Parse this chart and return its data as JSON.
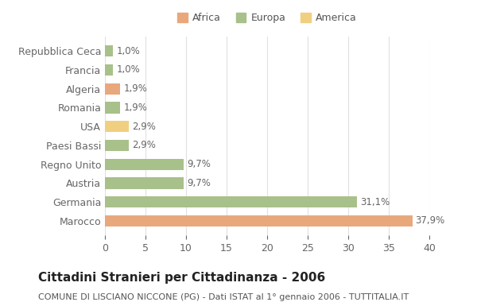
{
  "categories_top_to_bottom": [
    "Marocco",
    "Germania",
    "Austria",
    "Regno Unito",
    "Paesi Bassi",
    "USA",
    "Romania",
    "Algeria",
    "Francia",
    "Repubblica Ceca"
  ],
  "values_top_to_bottom": [
    37.9,
    31.1,
    9.7,
    9.7,
    2.9,
    2.9,
    1.9,
    1.9,
    1.0,
    1.0
  ],
  "labels_top_to_bottom": [
    "37,9%",
    "31,1%",
    "9,7%",
    "9,7%",
    "2,9%",
    "2,9%",
    "1,9%",
    "1,9%",
    "1,0%",
    "1,0%"
  ],
  "colors_top_to_bottom": [
    "#E8A87C",
    "#A8C08A",
    "#A8C08A",
    "#A8C08A",
    "#A8C08A",
    "#F0D080",
    "#A8C08A",
    "#E8A87C",
    "#A8C08A",
    "#A8C08A"
  ],
  "legend_labels": [
    "Africa",
    "Europa",
    "America"
  ],
  "legend_colors": [
    "#E8A87C",
    "#A8C08A",
    "#F0D080"
  ],
  "title": "Cittadini Stranieri per Cittadinanza - 2006",
  "subtitle": "COMUNE DI LISCIANO NICCONE (PG) - Dati ISTAT al 1° gennaio 2006 - TUTTITALIA.IT",
  "xlim": [
    0,
    40
  ],
  "xticks": [
    0,
    5,
    10,
    15,
    20,
    25,
    30,
    35,
    40
  ],
  "background_color": "#ffffff",
  "grid_color": "#e0e0e0",
  "bar_height": 0.6,
  "title_fontsize": 11,
  "subtitle_fontsize": 8,
  "tick_fontsize": 9,
  "label_fontsize": 8.5
}
